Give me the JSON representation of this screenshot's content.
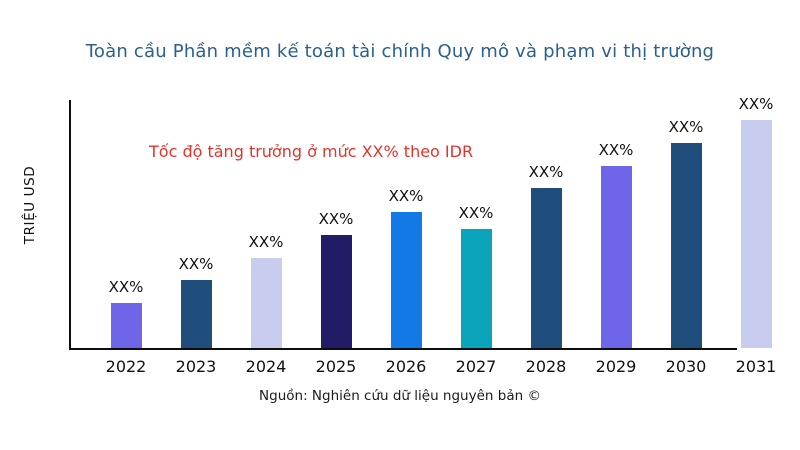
{
  "chart_data": {
    "type": "bar",
    "title": "Toàn cầu Phần mềm kế toán tài chính Quy mô và phạm vi thị trường",
    "title_color": "#2A5F8F",
    "ylabel": "TRIỆU USD",
    "xlabel": "",
    "annotation": "Tốc độ tăng trưởng ở mức XX% theo IDR",
    "annotation_color": "#E5332A",
    "categories": [
      "2022",
      "2023",
      "2024",
      "2025",
      "2026",
      "2027",
      "2028",
      "2029",
      "2030",
      "2031"
    ],
    "values": [
      45,
      68,
      90,
      113,
      136,
      119,
      160,
      182,
      205,
      228
    ],
    "ylim": [
      0,
      250
    ],
    "bar_labels": [
      "XX%",
      "XX%",
      "XX%",
      "XX%",
      "XX%",
      "XX%",
      "XX%",
      "XX%",
      "XX%",
      "XX%"
    ],
    "bar_colors": [
      "#6F65E9",
      "#1F4E7C",
      "#C8CCEE",
      "#221B66",
      "#1379E4",
      "#09A3BA",
      "#1F4E7C",
      "#6F65E9",
      "#1F4E7C",
      "#C8CCEE"
    ],
    "axis_color": "#0d0d0d",
    "grid": false,
    "legend": null,
    "source": "Nguồn: Nghiên cứu dữ liệu nguyên bản ©"
  }
}
